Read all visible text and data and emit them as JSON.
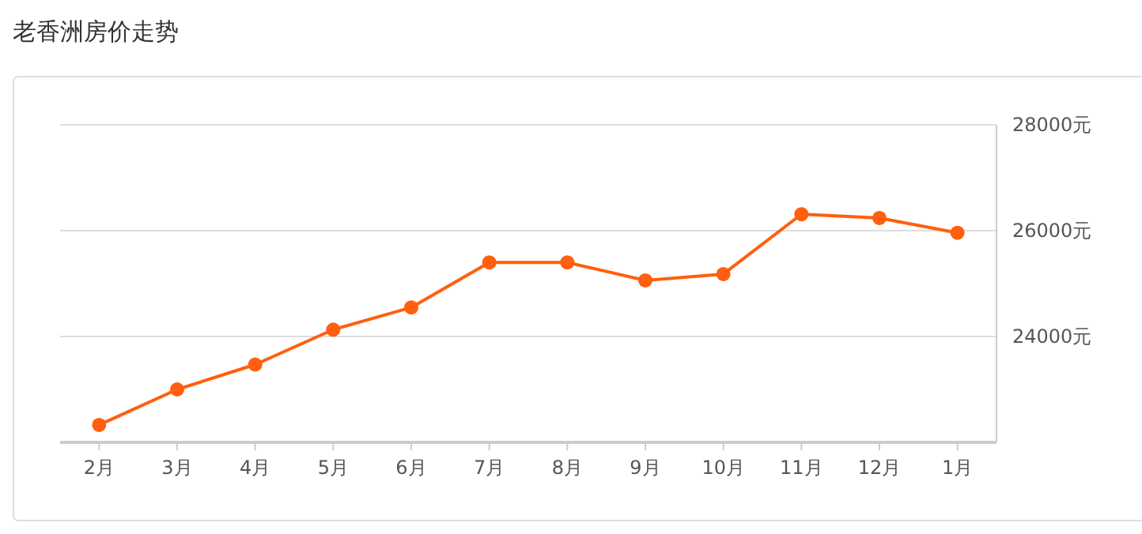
{
  "chart_data": {
    "type": "line",
    "title": "老香洲房价走势",
    "categories": [
      "2月",
      "3月",
      "4月",
      "5月",
      "6月",
      "7月",
      "8月",
      "9月",
      "10月",
      "11月",
      "12月",
      "1月"
    ],
    "series": [
      {
        "color": "#ff5f0f",
        "values": [
          22330,
          23000,
          23470,
          24130,
          24550,
          25400,
          25400,
          25060,
          25180,
          26310,
          26240,
          25960
        ]
      }
    ],
    "ylim": [
      22000,
      28000
    ],
    "yticks": [
      {
        "value": 22000,
        "label": null
      },
      {
        "value": 24000,
        "label": "24000元"
      },
      {
        "value": 26000,
        "label": "26000元"
      },
      {
        "value": 28000,
        "label": "28000元"
      }
    ],
    "grid": "y",
    "marker": "circle",
    "line_style": "solid"
  }
}
